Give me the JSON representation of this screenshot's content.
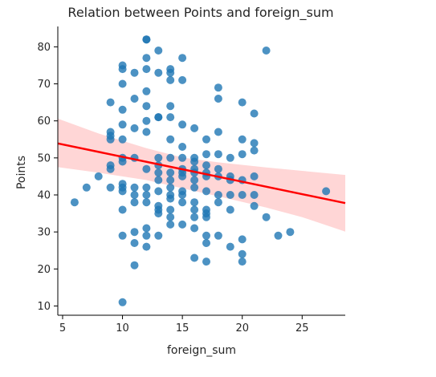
{
  "chart_data": {
    "type": "scatter",
    "title": "Relation between Points and foreign_sum",
    "xlabel": "foreign_sum",
    "ylabel": "Points",
    "xlim": [
      4.6,
      28.6
    ],
    "ylim": [
      7.5,
      85.5
    ],
    "xticks": [
      5,
      10,
      15,
      20,
      25
    ],
    "yticks": [
      10,
      20,
      30,
      40,
      50,
      60,
      70,
      80
    ],
    "grid": false,
    "legend": "none",
    "colors": {
      "points": "#1f77b4",
      "regression_line": "#ff0000",
      "confidence_band": "#ff9999"
    },
    "series": [
      {
        "values": [
          [
            6,
            38
          ],
          [
            7,
            42
          ],
          [
            8,
            45
          ],
          [
            9,
            48
          ],
          [
            9,
            65
          ],
          [
            9,
            57
          ],
          [
            9,
            56
          ],
          [
            9,
            55
          ],
          [
            9,
            47
          ],
          [
            9,
            42
          ],
          [
            10,
            75
          ],
          [
            10,
            74
          ],
          [
            10,
            70
          ],
          [
            10,
            63
          ],
          [
            10,
            59
          ],
          [
            10,
            55
          ],
          [
            10,
            50
          ],
          [
            10,
            49
          ],
          [
            10,
            43
          ],
          [
            10,
            42
          ],
          [
            10,
            41
          ],
          [
            10,
            36
          ],
          [
            10,
            29
          ],
          [
            10,
            11
          ],
          [
            11,
            73
          ],
          [
            11,
            66
          ],
          [
            11,
            58
          ],
          [
            11,
            50
          ],
          [
            11,
            42
          ],
          [
            11,
            40
          ],
          [
            11,
            38
          ],
          [
            11,
            30
          ],
          [
            11,
            27
          ],
          [
            11,
            21
          ],
          [
            12,
            82
          ],
          [
            12,
            82
          ],
          [
            12,
            77
          ],
          [
            12,
            74
          ],
          [
            12,
            68
          ],
          [
            12,
            64
          ],
          [
            12,
            60
          ],
          [
            12,
            57
          ],
          [
            12,
            47
          ],
          [
            12,
            42
          ],
          [
            12,
            40
          ],
          [
            12,
            38
          ],
          [
            12,
            31
          ],
          [
            12,
            29
          ],
          [
            12,
            26
          ],
          [
            13,
            79
          ],
          [
            13,
            73
          ],
          [
            13,
            61
          ],
          [
            13,
            61
          ],
          [
            13,
            50
          ],
          [
            13,
            48
          ],
          [
            13,
            46
          ],
          [
            13,
            44
          ],
          [
            13,
            41
          ],
          [
            13,
            37
          ],
          [
            13,
            36
          ],
          [
            13,
            35
          ],
          [
            13,
            29
          ],
          [
            14,
            74
          ],
          [
            14,
            73
          ],
          [
            14,
            71
          ],
          [
            14,
            64
          ],
          [
            14,
            61
          ],
          [
            14,
            55
          ],
          [
            14,
            50
          ],
          [
            14,
            46
          ],
          [
            14,
            44
          ],
          [
            14,
            42
          ],
          [
            14,
            40
          ],
          [
            14,
            39
          ],
          [
            14,
            36
          ],
          [
            14,
            34
          ],
          [
            14,
            32
          ],
          [
            15,
            77
          ],
          [
            15,
            71
          ],
          [
            15,
            59
          ],
          [
            15,
            53
          ],
          [
            15,
            50
          ],
          [
            15,
            47
          ],
          [
            15,
            46
          ],
          [
            15,
            45
          ],
          [
            15,
            41
          ],
          [
            15,
            40
          ],
          [
            15,
            38
          ],
          [
            15,
            32
          ],
          [
            16,
            58
          ],
          [
            16,
            50
          ],
          [
            16,
            49
          ],
          [
            16,
            47
          ],
          [
            16,
            46
          ],
          [
            16,
            44
          ],
          [
            16,
            42
          ],
          [
            16,
            38
          ],
          [
            16,
            36
          ],
          [
            16,
            34
          ],
          [
            16,
            31
          ],
          [
            16,
            23
          ],
          [
            17,
            55
          ],
          [
            17,
            51
          ],
          [
            17,
            48
          ],
          [
            17,
            46
          ],
          [
            17,
            45
          ],
          [
            17,
            41
          ],
          [
            17,
            36
          ],
          [
            17,
            35
          ],
          [
            17,
            34
          ],
          [
            17,
            29
          ],
          [
            17,
            27
          ],
          [
            17,
            22
          ],
          [
            18,
            69
          ],
          [
            18,
            66
          ],
          [
            18,
            57
          ],
          [
            18,
            51
          ],
          [
            18,
            47
          ],
          [
            18,
            45
          ],
          [
            18,
            40
          ],
          [
            18,
            38
          ],
          [
            18,
            29
          ],
          [
            19,
            50
          ],
          [
            19,
            45
          ],
          [
            19,
            44
          ],
          [
            19,
            40
          ],
          [
            19,
            36
          ],
          [
            19,
            26
          ],
          [
            20,
            65
          ],
          [
            20,
            55
          ],
          [
            20,
            51
          ],
          [
            20,
            44
          ],
          [
            20,
            40
          ],
          [
            20,
            28
          ],
          [
            20,
            24
          ],
          [
            20,
            22
          ],
          [
            21,
            62
          ],
          [
            21,
            54
          ],
          [
            21,
            52
          ],
          [
            21,
            45
          ],
          [
            21,
            40
          ],
          [
            21,
            37
          ],
          [
            22,
            79
          ],
          [
            22,
            34
          ],
          [
            23,
            29
          ],
          [
            24,
            30
          ],
          [
            27,
            41
          ]
        ]
      }
    ],
    "regression": {
      "line": [
        [
          4.6,
          53.9
        ],
        [
          28.6,
          37.8
        ]
      ],
      "band_upper": [
        [
          4.6,
          60.6
        ],
        [
          8,
          56.6
        ],
        [
          12,
          52.6
        ],
        [
          15,
          50.1
        ],
        [
          18,
          48.8
        ],
        [
          22,
          47.4
        ],
        [
          25,
          46.5
        ],
        [
          28.6,
          45.4
        ]
      ],
      "band_lower": [
        [
          4.6,
          47.5
        ],
        [
          8,
          46.0
        ],
        [
          12,
          44.0
        ],
        [
          15,
          41.8
        ],
        [
          18,
          39.6
        ],
        [
          22,
          36.6
        ],
        [
          25,
          34.0
        ],
        [
          28.6,
          30.1
        ]
      ]
    }
  }
}
